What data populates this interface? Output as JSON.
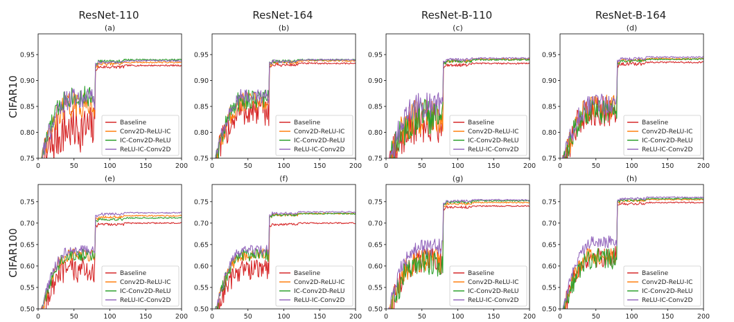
{
  "figure": {
    "column_titles": [
      "ResNet-110",
      "ResNet-164",
      "ResNet-B-110",
      "ResNet-B-164"
    ],
    "row_labels": [
      "CIFAR10",
      "CIFAR100"
    ]
  },
  "colors": {
    "Baseline": "#d62728",
    "Conv2D-ReLU-IC": "#ff7f0e",
    "IC-Conv2D-ReLU": "#2ca02c",
    "ReLU-IC-Conv2D": "#9467bd"
  },
  "chart_data": [
    {
      "type": "line",
      "panel": "(a)",
      "title": "ResNet-110",
      "dataset": "CIFAR10",
      "xlim": [
        0,
        200
      ],
      "ylim": [
        0.75,
        0.99
      ],
      "xticks": [
        0,
        50,
        100,
        150,
        200
      ],
      "yticks": [
        0.75,
        0.8,
        0.85,
        0.9,
        0.95
      ],
      "legend": "lower-right",
      "series": [
        {
          "name": "Baseline",
          "final": 0.929,
          "pre": 0.82,
          "noise": 0.045
        },
        {
          "name": "Conv2D-ReLU-IC",
          "final": 0.935,
          "pre": 0.86,
          "noise": 0.025
        },
        {
          "name": "IC-Conv2D-ReLU",
          "final": 0.94,
          "pre": 0.875,
          "noise": 0.02
        },
        {
          "name": "ReLU-IC-Conv2D",
          "final": 0.938,
          "pre": 0.87,
          "noise": 0.02
        }
      ]
    },
    {
      "type": "line",
      "panel": "(b)",
      "title": "ResNet-164",
      "dataset": "CIFAR10",
      "xlim": [
        0,
        200
      ],
      "ylim": [
        0.75,
        0.99
      ],
      "xticks": [
        0,
        50,
        100,
        150,
        200
      ],
      "yticks": [
        0.75,
        0.8,
        0.85,
        0.9,
        0.95
      ],
      "legend": "lower-right",
      "series": [
        {
          "name": "Baseline",
          "final": 0.933,
          "pre": 0.85,
          "noise": 0.03
        },
        {
          "name": "Conv2D-ReLU-IC",
          "final": 0.938,
          "pre": 0.865,
          "noise": 0.02
        },
        {
          "name": "IC-Conv2D-ReLU",
          "final": 0.94,
          "pre": 0.87,
          "noise": 0.02
        },
        {
          "name": "ReLU-IC-Conv2D",
          "final": 0.94,
          "pre": 0.875,
          "noise": 0.015
        }
      ]
    },
    {
      "type": "line",
      "panel": "(c)",
      "title": "ResNet-B-110",
      "dataset": "CIFAR10",
      "xlim": [
        0,
        200
      ],
      "ylim": [
        0.75,
        0.99
      ],
      "xticks": [
        0,
        50,
        100,
        150,
        200
      ],
      "yticks": [
        0.75,
        0.8,
        0.85,
        0.9,
        0.95
      ],
      "legend": "lower-right",
      "series": [
        {
          "name": "Baseline",
          "final": 0.933,
          "pre": 0.83,
          "noise": 0.04
        },
        {
          "name": "Conv2D-ReLU-IC",
          "final": 0.941,
          "pre": 0.84,
          "noise": 0.035
        },
        {
          "name": "IC-Conv2D-ReLU",
          "final": 0.94,
          "pre": 0.84,
          "noise": 0.035
        },
        {
          "name": "ReLU-IC-Conv2D",
          "final": 0.943,
          "pre": 0.86,
          "noise": 0.025
        }
      ]
    },
    {
      "type": "line",
      "panel": "(d)",
      "title": "ResNet-B-164",
      "dataset": "CIFAR10",
      "xlim": [
        0,
        200
      ],
      "ylim": [
        0.75,
        0.99
      ],
      "xticks": [
        0,
        50,
        100,
        150,
        200
      ],
      "yticks": [
        0.75,
        0.8,
        0.85,
        0.9,
        0.95
      ],
      "legend": "lower-right",
      "series": [
        {
          "name": "Baseline",
          "final": 0.935,
          "pre": 0.85,
          "noise": 0.03
        },
        {
          "name": "Conv2D-ReLU-IC",
          "final": 0.942,
          "pre": 0.855,
          "noise": 0.025
        },
        {
          "name": "IC-Conv2D-ReLU",
          "final": 0.941,
          "pre": 0.85,
          "noise": 0.025
        },
        {
          "name": "ReLU-IC-Conv2D",
          "final": 0.945,
          "pre": 0.86,
          "noise": 0.02
        }
      ]
    },
    {
      "type": "line",
      "panel": "(e)",
      "title": "ResNet-110",
      "dataset": "CIFAR100",
      "xlim": [
        0,
        200
      ],
      "ylim": [
        0.5,
        0.79
      ],
      "xticks": [
        0,
        50,
        100,
        150,
        200
      ],
      "yticks": [
        0.5,
        0.55,
        0.6,
        0.65,
        0.7,
        0.75
      ],
      "legend": "lower-right",
      "series": [
        {
          "name": "Baseline",
          "final": 0.7,
          "pre": 0.6,
          "noise": 0.03
        },
        {
          "name": "Conv2D-ReLU-IC",
          "final": 0.717,
          "pre": 0.63,
          "noise": 0.015
        },
        {
          "name": "IC-Conv2D-ReLU",
          "final": 0.712,
          "pre": 0.63,
          "noise": 0.015
        },
        {
          "name": "ReLU-IC-Conv2D",
          "final": 0.724,
          "pre": 0.64,
          "noise": 0.012
        }
      ]
    },
    {
      "type": "line",
      "panel": "(f)",
      "title": "ResNet-164",
      "dataset": "CIFAR100",
      "xlim": [
        0,
        200
      ],
      "ylim": [
        0.5,
        0.79
      ],
      "xticks": [
        0,
        50,
        100,
        150,
        200
      ],
      "yticks": [
        0.5,
        0.55,
        0.6,
        0.65,
        0.7,
        0.75
      ],
      "legend": "lower-right",
      "series": [
        {
          "name": "Baseline",
          "final": 0.7,
          "pre": 0.6,
          "noise": 0.025
        },
        {
          "name": "Conv2D-ReLU-IC",
          "final": 0.722,
          "pre": 0.63,
          "noise": 0.015
        },
        {
          "name": "IC-Conv2D-ReLU",
          "final": 0.722,
          "pre": 0.63,
          "noise": 0.015
        },
        {
          "name": "ReLU-IC-Conv2D",
          "final": 0.726,
          "pre": 0.64,
          "noise": 0.012
        }
      ]
    },
    {
      "type": "line",
      "panel": "(g)",
      "title": "ResNet-B-110",
      "dataset": "CIFAR100",
      "xlim": [
        0,
        200
      ],
      "ylim": [
        0.5,
        0.79
      ],
      "xticks": [
        0,
        50,
        100,
        150,
        200
      ],
      "yticks": [
        0.5,
        0.55,
        0.6,
        0.65,
        0.7,
        0.75
      ],
      "legend": "lower-right",
      "series": [
        {
          "name": "Baseline",
          "final": 0.74,
          "pre": 0.62,
          "noise": 0.03
        },
        {
          "name": "Conv2D-ReLU-IC",
          "final": 0.748,
          "pre": 0.62,
          "noise": 0.03
        },
        {
          "name": "IC-Conv2D-ReLU",
          "final": 0.752,
          "pre": 0.615,
          "noise": 0.03
        },
        {
          "name": "ReLU-IC-Conv2D",
          "final": 0.754,
          "pre": 0.65,
          "noise": 0.02
        }
      ]
    },
    {
      "type": "line",
      "panel": "(h)",
      "title": "ResNet-B-164",
      "dataset": "CIFAR100",
      "xlim": [
        0,
        200
      ],
      "ylim": [
        0.5,
        0.79
      ],
      "xticks": [
        0,
        50,
        100,
        150,
        200
      ],
      "yticks": [
        0.5,
        0.55,
        0.6,
        0.65,
        0.7,
        0.75
      ],
      "legend": "lower-right",
      "series": [
        {
          "name": "Baseline",
          "final": 0.748,
          "pre": 0.63,
          "noise": 0.025
        },
        {
          "name": "Conv2D-ReLU-IC",
          "final": 0.755,
          "pre": 0.63,
          "noise": 0.02
        },
        {
          "name": "IC-Conv2D-ReLU",
          "final": 0.757,
          "pre": 0.625,
          "noise": 0.025
        },
        {
          "name": "ReLU-IC-Conv2D",
          "final": 0.76,
          "pre": 0.66,
          "noise": 0.015
        }
      ]
    }
  ]
}
